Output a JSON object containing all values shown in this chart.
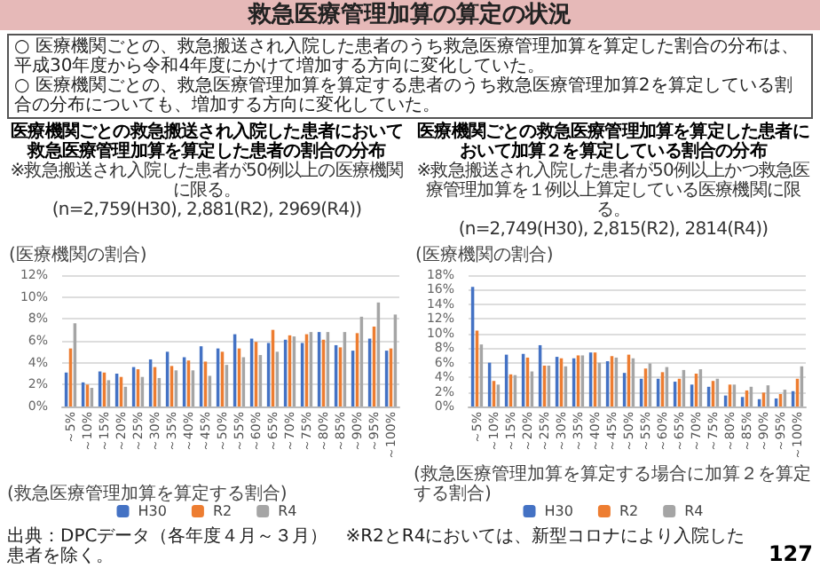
{
  "chart_data": [
    {
      "type": "other",
      "title": "救急医療管理加算の算定の状況",
      "annotations": [
        "○ 医療機関ごとの、救急搬送され入院した患者のうち救急医療管理加算を算定した割合の分布は、平成30年度から令和4年度にかけて増加する方向に変化していた。",
        "○ 医療機関ごとの、救急医療管理加算を算定する患者のうち救急医療管理加算2を算定している割合の分布についても、増加する方向に変化していた。",
        "出典：DPCデータ（各年度４月～３月）　※R2とR4においては、新型コロナにより入院した患者を除く。",
        "127"
      ]
    },
    {
      "type": "bar",
      "title": "医療機関ごとの救急搬送され入院した患者において救急医療管理加算を算定した患者の割合の分布",
      "subtitle": "※救急搬送され入院した患者が50例以上の医療機関に限る。\n(n=2,759(H30), 2,881(R2), 2969(R4))",
      "ylabel": "(医療機関の割合)",
      "xlabel": "(救急医療管理加算を算定する割合)",
      "categories": [
        "～5%",
        "～10%",
        "～15%",
        "～20%",
        "～25%",
        "～30%",
        "～35%",
        "～40%",
        "～45%",
        "～50%",
        "～55%",
        "～60%",
        "～65%",
        "～70%",
        "～75%",
        "～80%",
        "～85%",
        "～90%",
        "～95%",
        "～100%"
      ],
      "series": [
        {
          "name": "H30",
          "color": "#4472c4",
          "values": [
            3.1,
            2.2,
            3.2,
            3.0,
            3.6,
            4.3,
            5.0,
            4.5,
            5.5,
            5.3,
            6.6,
            6.2,
            5.8,
            6.1,
            5.8,
            6.8,
            5.6,
            5.1,
            6.2,
            5.1
          ]
        },
        {
          "name": "R2",
          "color": "#ed7d31",
          "values": [
            5.3,
            2.0,
            3.1,
            2.7,
            3.4,
            3.6,
            3.7,
            4.2,
            4.1,
            5.0,
            5.3,
            5.9,
            7.0,
            6.5,
            6.6,
            6.1,
            5.4,
            6.7,
            7.3,
            5.3
          ]
        },
        {
          "name": "R4",
          "color": "#a5a5a5",
          "values": [
            7.6,
            1.7,
            2.4,
            1.8,
            2.7,
            2.6,
            3.3,
            3.3,
            2.8,
            3.8,
            4.5,
            4.7,
            5.0,
            6.4,
            6.8,
            6.8,
            6.8,
            8.2,
            9.5,
            8.4
          ]
        }
      ],
      "ylim": [
        0,
        12
      ],
      "yticks": [
        {
          "value": 0,
          "label": "0%"
        },
        {
          "value": 2,
          "label": "2%"
        },
        {
          "value": 4,
          "label": "4%"
        },
        {
          "value": 6,
          "label": "6%"
        },
        {
          "value": 8,
          "label": "8%"
        },
        {
          "value": 10,
          "label": "10%"
        },
        {
          "value": 12,
          "label": "12%"
        }
      ],
      "grid": "y",
      "legend": "bottom"
    },
    {
      "type": "bar",
      "title": "医療機関ごとの救急医療管理加算を算定した患者において加算２を算定している割合の分布",
      "subtitle": "※救急搬送され入院した患者が50例以上かつ救急医療管理加算を１例以上算定している医療機関に限る。\n(n=2,749(H30), 2,815(R2), 2814(R4))",
      "ylabel": "(医療機関の割合)",
      "xlabel": "(救急医療管理加算を算定する場合に加算２を算定する割合)",
      "categories": [
        "～5%",
        "～10%",
        "～15%",
        "～20%",
        "～25%",
        "～30%",
        "～35%",
        "～40%",
        "～45%",
        "～50%",
        "～55%",
        "～60%",
        "～65%",
        "～70%",
        "～75%",
        "～80%",
        "～85%",
        "～90%",
        "～95%",
        "～100%"
      ],
      "series": [
        {
          "name": "H30",
          "color": "#4472c4",
          "values": [
            16.4,
            6.0,
            7.1,
            7.2,
            8.4,
            6.8,
            6.6,
            7.4,
            6.2,
            4.6,
            3.8,
            3.8,
            3.4,
            3.0,
            2.7,
            1.5,
            1.3,
            1.0,
            1.1,
            2.1
          ]
        },
        {
          "name": "R2",
          "color": "#ed7d31",
          "values": [
            10.4,
            3.5,
            4.4,
            6.7,
            5.6,
            6.6,
            7.0,
            7.4,
            6.9,
            7.1,
            5.2,
            4.7,
            3.8,
            4.5,
            3.5,
            3.0,
            2.2,
            1.9,
            1.7,
            3.8
          ]
        },
        {
          "name": "R4",
          "color": "#a5a5a5",
          "values": [
            8.5,
            3.0,
            4.3,
            4.8,
            5.6,
            5.5,
            7.0,
            6.0,
            6.7,
            6.6,
            5.9,
            5.4,
            5.0,
            5.1,
            3.8,
            3.0,
            2.7,
            2.9,
            2.3,
            5.5
          ]
        }
      ],
      "ylim": [
        0,
        18
      ],
      "yticks": [
        {
          "value": 0,
          "label": "0%"
        },
        {
          "value": 2,
          "label": "2%"
        },
        {
          "value": 4,
          "label": "4%"
        },
        {
          "value": 6,
          "label": "6%"
        },
        {
          "value": 8,
          "label": "8%"
        },
        {
          "value": 10,
          "label": "10%"
        },
        {
          "value": 12,
          "label": "12%"
        },
        {
          "value": 14,
          "label": "14%"
        },
        {
          "value": 16,
          "label": "16%"
        },
        {
          "value": 18,
          "label": "18%"
        }
      ],
      "grid": "y",
      "legend": "bottom"
    }
  ]
}
